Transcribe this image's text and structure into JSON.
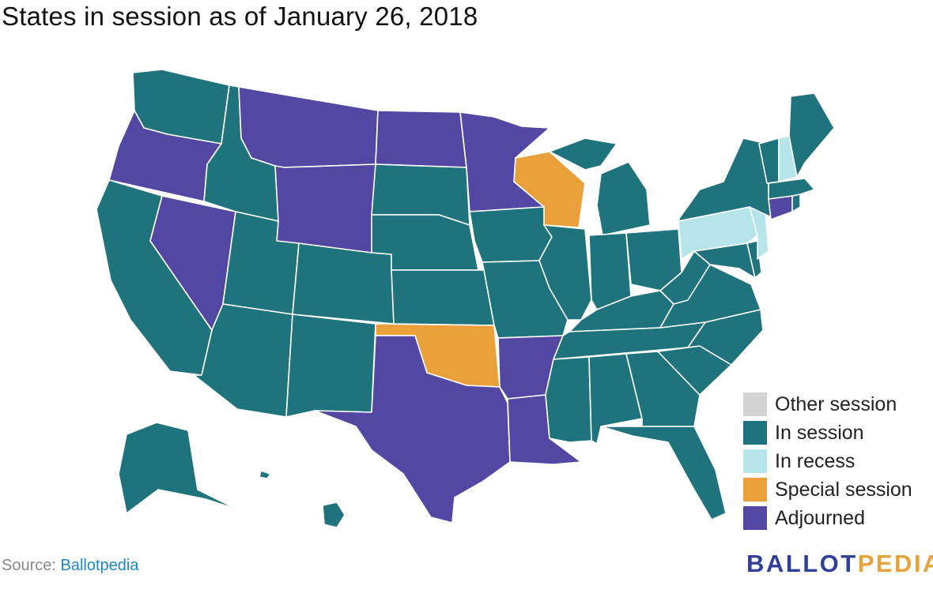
{
  "title": "States in session as of January 26, 2018",
  "colors": {
    "other": "#d3d3d3",
    "in_session": "#1f737d",
    "in_recess": "#b5e5eb",
    "special": "#e9a03b",
    "adjourned": "#5248a3"
  },
  "legend": [
    {
      "label": "Other session",
      "status": "other"
    },
    {
      "label": "In session",
      "status": "in_session"
    },
    {
      "label": "In recess",
      "status": "in_recess"
    },
    {
      "label": "Special session",
      "status": "special"
    },
    {
      "label": "Adjourned",
      "status": "adjourned"
    }
  ],
  "states": {
    "WA": "in_session",
    "OR": "adjourned",
    "CA": "in_session",
    "NV": "adjourned",
    "ID": "in_session",
    "MT": "adjourned",
    "WY": "adjourned",
    "UT": "in_session",
    "AZ": "in_session",
    "CO": "in_session",
    "NM": "in_session",
    "ND": "adjourned",
    "SD": "in_session",
    "NE": "in_session",
    "KS": "in_session",
    "OK": "special",
    "TX": "adjourned",
    "MN": "adjourned",
    "IA": "in_session",
    "MO": "in_session",
    "AR": "adjourned",
    "LA": "adjourned",
    "WI": "special",
    "IL": "in_session",
    "MI": "in_session",
    "IN": "in_session",
    "OH": "in_session",
    "KY": "in_session",
    "TN": "in_session",
    "MS": "in_session",
    "AL": "in_session",
    "GA": "in_session",
    "FL": "in_session",
    "SC": "in_session",
    "NC": "in_session",
    "VA": "in_session",
    "WV": "in_session",
    "MD": "in_session",
    "DE": "in_session",
    "PA": "in_recess",
    "NJ": "in_recess",
    "NY": "in_session",
    "CT": "adjourned",
    "RI": "in_session",
    "MA": "in_session",
    "VT": "in_session",
    "NH": "in_recess",
    "ME": "in_session",
    "AK": "in_session",
    "HI": "in_session"
  },
  "source": {
    "prefix": "Source: ",
    "link_text": "Ballotpedia"
  },
  "logo": {
    "part1": "BALLOT",
    "part2": "PEDIA"
  }
}
